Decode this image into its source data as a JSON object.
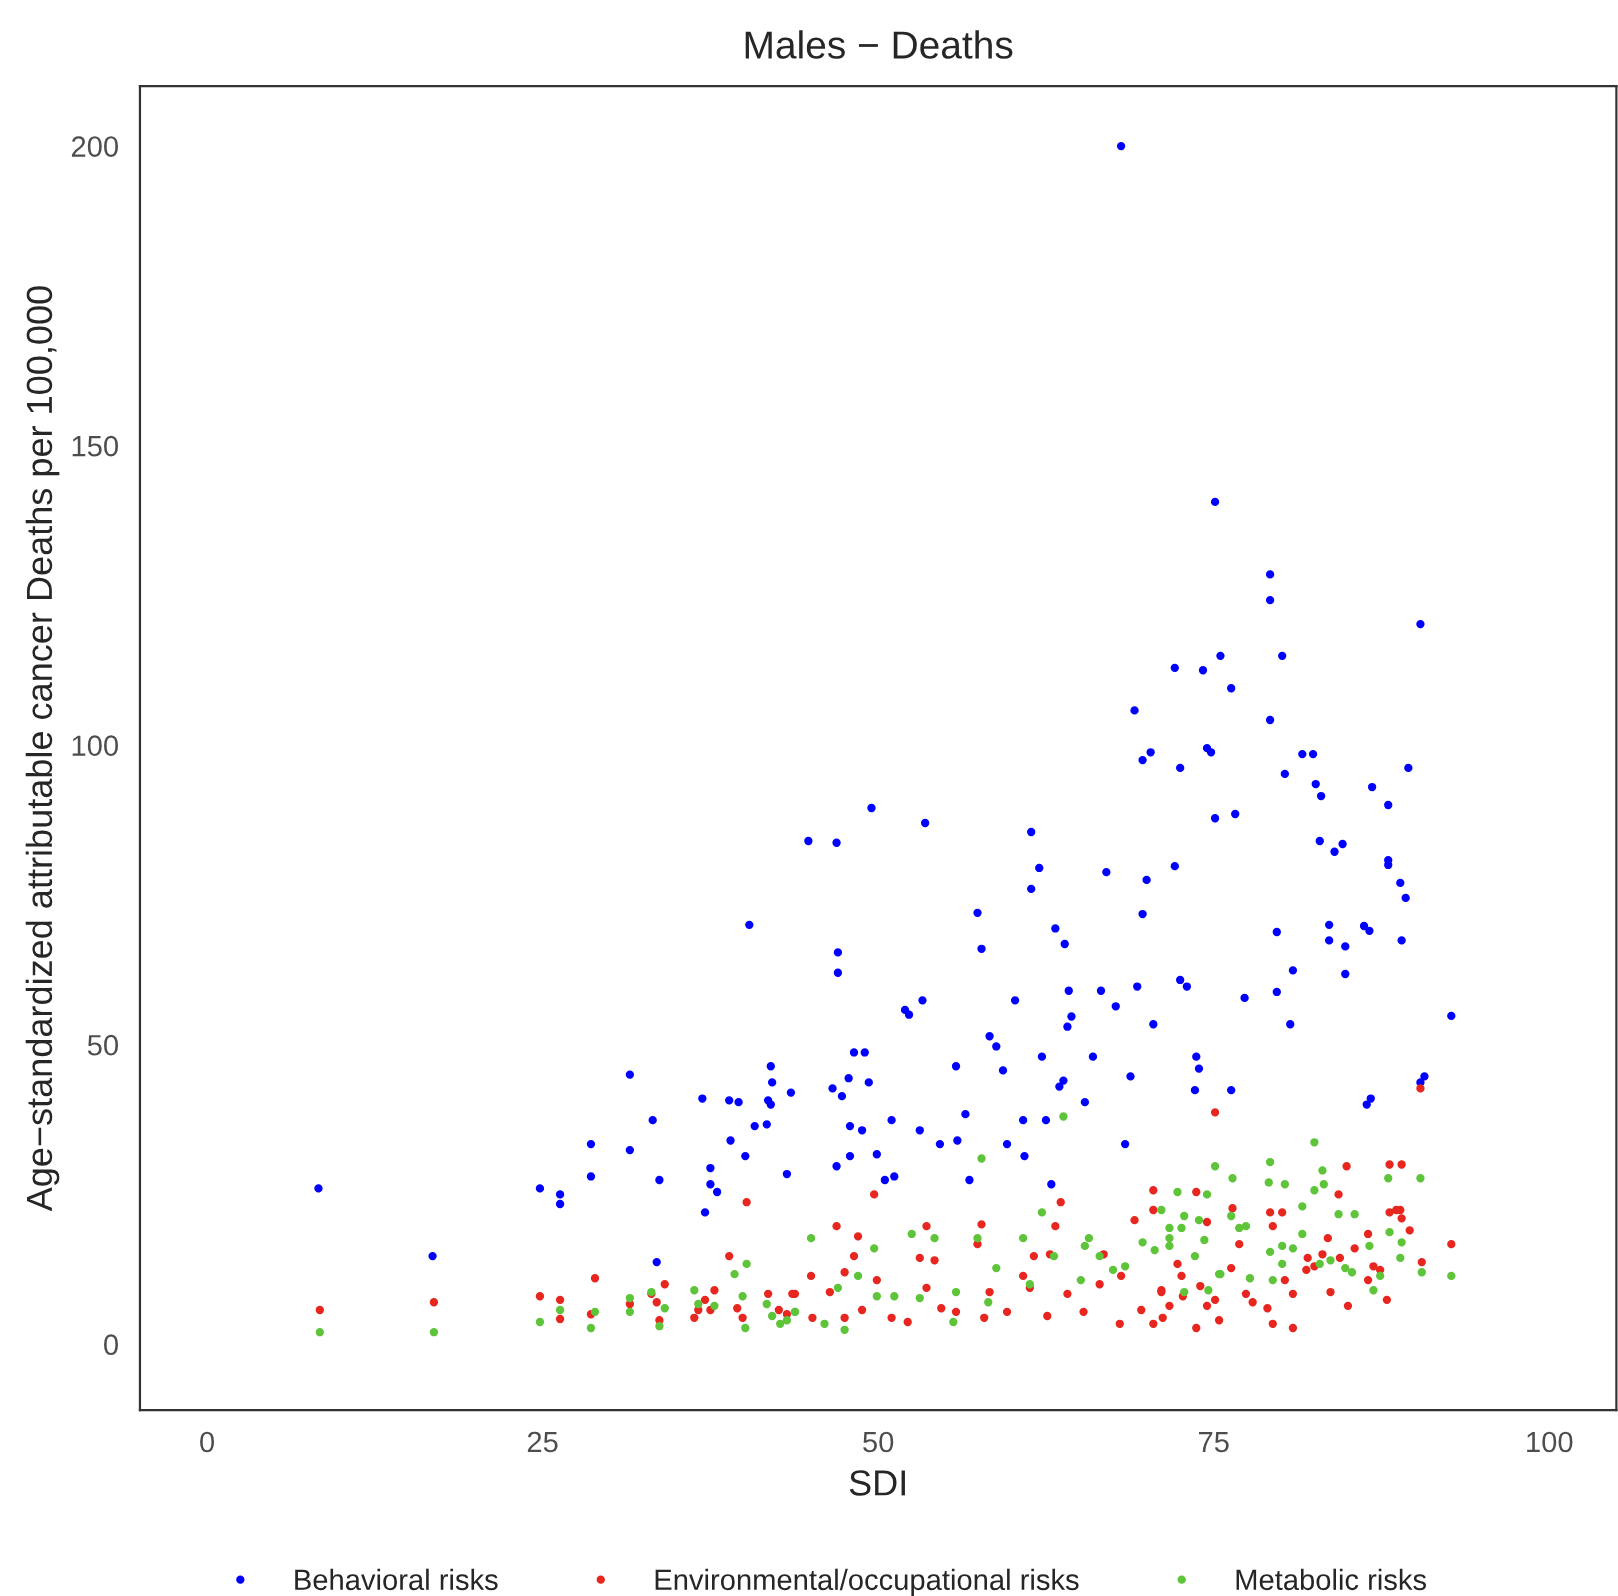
{
  "chart_data": {
    "type": "scatter",
    "title": "Males − Deaths",
    "xlabel": "SDI",
    "ylabel": "Age−standardized attributable cancer Deaths per 100,000",
    "xlim": [
      -5,
      105
    ],
    "ylim": [
      -11,
      210
    ],
    "xticks": [
      0,
      25,
      50,
      75,
      100
    ],
    "yticks": [
      0,
      50,
      100,
      150,
      200
    ],
    "grid": false,
    "legend": "bottom",
    "marker": "circle",
    "series": [
      {
        "name": "Behavioral risks",
        "color": "#0000ff",
        "x": [
          8.3,
          16.8,
          24.8,
          26.3,
          26.3,
          28.6,
          28.6,
          31.5,
          31.5,
          33.2,
          33.7,
          33.5,
          36.9,
          37.1,
          37.5,
          37.5,
          38.0,
          38.9,
          39.0,
          39.6,
          40.4,
          40.1,
          40.8,
          41.7,
          42.0,
          41.8,
          42.0,
          42.1,
          43.2,
          43.5,
          44.8,
          46.9,
          47.0,
          47.0,
          46.6,
          47.3,
          46.9,
          47.8,
          48.2,
          49.0,
          49.3,
          47.9,
          47.9,
          49.5,
          48.8,
          49.9,
          50.5,
          51.0,
          51.2,
          52.0,
          52.3,
          53.3,
          53.5,
          53.1,
          54.6,
          55.8,
          55.9,
          56.5,
          56.8,
          57.4,
          57.7,
          58.3,
          58.8,
          59.3,
          60.2,
          59.6,
          60.8,
          60.9,
          61.4,
          61.4,
          62.0,
          62.5,
          62.2,
          63.2,
          62.9,
          63.5,
          63.8,
          64.1,
          64.2,
          64.4,
          63.9,
          65.4,
          66.0,
          66.6,
          67.0,
          67.7,
          68.4,
          68.8,
          69.7,
          69.1,
          69.7,
          70.3,
          70.0,
          69.3,
          70.5,
          72.1,
          72.5,
          72.1,
          72.5,
          73.0,
          73.7,
          74.2,
          74.5,
          74.8,
          73.9,
          73.6,
          75.1,
          75.5,
          75.1,
          76.3,
          76.6,
          76.3,
          77.3,
          79.2,
          79.2,
          79.2,
          80.1,
          80.3,
          79.7,
          79.7,
          80.7,
          80.9,
          81.6,
          82.4,
          82.6,
          82.9,
          83.0,
          84.0,
          84.6,
          83.6,
          83.6,
          84.8,
          84.8,
          86.2,
          86.4,
          86.7,
          86.6,
          86.8,
          88.0,
          88.0,
          88.0,
          89.5,
          88.9,
          89.3,
          89.0,
          90.4,
          90.4,
          90.7,
          92.7,
          68.1
        ],
        "values": [
          26.0,
          14.7,
          26.0,
          25.0,
          23.4,
          33.4,
          28.0,
          45.0,
          32.4,
          37.4,
          27.4,
          13.7,
          41.0,
          22.0,
          29.4,
          26.7,
          25.4,
          40.7,
          34.0,
          40.4,
          70.0,
          31.4,
          36.4,
          36.7,
          46.4,
          40.7,
          40.0,
          43.7,
          28.4,
          42.0,
          84.0,
          83.7,
          65.4,
          62.0,
          42.7,
          41.4,
          29.7,
          44.4,
          48.7,
          48.7,
          43.7,
          36.4,
          31.4,
          89.5,
          35.7,
          31.7,
          27.4,
          37.4,
          28.0,
          55.8,
          55.0,
          57.4,
          87.0,
          35.7,
          33.4,
          46.4,
          34.0,
          38.4,
          27.4,
          72.0,
          66.0,
          51.4,
          49.7,
          45.7,
          57.4,
          33.4,
          37.4,
          31.4,
          85.5,
          76.0,
          79.5,
          37.4,
          48.0,
          69.4,
          26.7,
          43.0,
          44.0,
          53.0,
          59.0,
          54.7,
          66.8,
          40.4,
          48.0,
          59.0,
          78.8,
          56.4,
          33.4,
          44.7,
          71.8,
          105.8,
          97.5,
          98.8,
          77.5,
          59.7,
          53.4,
          112.9,
          96.2,
          79.8,
          60.8,
          59.7,
          48.0,
          112.5,
          99.5,
          98.8,
          46.0,
          42.4,
          140.6,
          114.9,
          87.8,
          109.5,
          88.5,
          42.4,
          57.8,
          128.5,
          124.2,
          104.2,
          114.9,
          95.2,
          68.8,
          58.8,
          53.4,
          62.4,
          98.5,
          98.5,
          93.5,
          84.0,
          91.5,
          82.2,
          83.5,
          70.0,
          67.4,
          66.4,
          61.8,
          69.8,
          40.0,
          41.0,
          69.0,
          93.0,
          90.0,
          80.8,
          80.0,
          96.2,
          77.0,
          74.5,
          67.4,
          120.2,
          43.7,
          44.7,
          54.8,
          200.0
        ]
      },
      {
        "name": "Environmental/occupational risks",
        "color": "#e6261f",
        "x": [
          8.4,
          16.9,
          24.8,
          26.3,
          26.3,
          28.9,
          28.6,
          31.5,
          33.1,
          33.5,
          34.1,
          33.7,
          36.3,
          36.6,
          37.1,
          37.8,
          37.5,
          38.9,
          40.2,
          39.5,
          39.9,
          41.8,
          42.6,
          43.2,
          43.8,
          43.6,
          45.0,
          45.1,
          46.9,
          46.4,
          47.5,
          47.5,
          48.2,
          48.5,
          48.8,
          49.7,
          49.9,
          51.0,
          52.2,
          53.1,
          53.6,
          54.2,
          53.6,
          54.7,
          55.8,
          57.4,
          57.7,
          57.9,
          58.3,
          59.6,
          60.8,
          61.6,
          61.3,
          62.8,
          63.2,
          62.6,
          63.6,
          64.1,
          65.3,
          66.5,
          66.8,
          68.1,
          68.0,
          69.1,
          69.6,
          70.5,
          70.5,
          71.1,
          70.5,
          75.1,
          90.4,
          84.9,
          88.1,
          89.0,
          84.3,
          73.7,
          74.5,
          76.4,
          79.2,
          80.1,
          79.4,
          88.1,
          88.9,
          89.6,
          92.7,
          90.5,
          72.3,
          72.6,
          71.1,
          71.7,
          72.7,
          74.0,
          74.5,
          75.1,
          75.4,
          73.7,
          71.2,
          76.3,
          76.9,
          77.4,
          77.9,
          79.0,
          79.4,
          80.9,
          80.9,
          80.3,
          81.9,
          82.5,
          83.1,
          83.7,
          83.5,
          84.4,
          85.0,
          85.5,
          86.5,
          86.9,
          87.4,
          87.9,
          86.5,
          82.0,
          89.0,
          88.6
        ],
        "values": [
          5.7,
          7.0,
          8.0,
          7.4,
          4.2,
          11.0,
          5.0,
          6.7,
          8.4,
          7.0,
          10.0,
          4.0,
          4.4,
          5.7,
          7.4,
          9.0,
          5.7,
          14.7,
          23.7,
          6.0,
          4.4,
          8.4,
          5.7,
          5.0,
          8.4,
          8.4,
          11.4,
          4.4,
          19.7,
          8.7,
          12.0,
          4.4,
          14.7,
          18.0,
          5.7,
          25.0,
          10.7,
          4.4,
          3.7,
          14.4,
          19.7,
          14.0,
          9.4,
          6.0,
          5.4,
          16.7,
          20.0,
          4.4,
          8.7,
          5.4,
          11.4,
          14.7,
          9.4,
          15.0,
          19.7,
          4.7,
          23.7,
          8.4,
          5.4,
          10.0,
          15.0,
          11.4,
          3.4,
          20.7,
          5.7,
          25.7,
          22.4,
          8.7,
          3.4,
          38.7,
          42.7,
          29.7,
          30.0,
          30.0,
          25.0,
          25.4,
          20.4,
          22.7,
          22.0,
          22.0,
          19.7,
          22.0,
          22.4,
          19.0,
          16.7,
          13.7,
          13.4,
          11.4,
          9.0,
          6.4,
          8.0,
          9.7,
          6.4,
          7.4,
          4.0,
          2.7,
          4.4,
          12.7,
          16.7,
          8.4,
          7.0,
          6.0,
          3.4,
          8.4,
          2.7,
          10.7,
          12.4,
          13.0,
          15.0,
          8.7,
          17.7,
          14.4,
          6.4,
          16.0,
          18.4,
          13.0,
          12.4,
          7.4,
          10.7,
          14.4,
          21.0,
          22.4
        ]
      },
      {
        "name": "Metabolic risks",
        "color": "#5ec43a",
        "x": [
          8.4,
          16.9,
          24.8,
          26.3,
          28.6,
          28.9,
          31.5,
          31.5,
          33.1,
          34.1,
          33.7,
          36.3,
          36.6,
          37.8,
          39.3,
          40.2,
          39.9,
          40.1,
          41.7,
          42.1,
          42.7,
          43.2,
          43.8,
          45.0,
          43.8,
          46.0,
          47.0,
          47.5,
          48.5,
          49.7,
          49.9,
          51.2,
          52.5,
          54.2,
          53.1,
          55.8,
          55.6,
          57.4,
          57.7,
          58.8,
          58.2,
          60.8,
          61.3,
          62.2,
          63.1,
          63.8,
          65.4,
          65.7,
          66.5,
          65.1,
          67.5,
          68.4,
          69.7,
          70.6,
          71.1,
          71.7,
          82.5,
          75.1,
          79.2,
          83.1,
          76.4,
          79.1,
          80.3,
          83.2,
          88.0,
          90.4,
          72.3,
          74.5,
          81.6,
          82.5,
          85.5,
          84.3,
          72.8,
          71.7,
          72.6,
          73.9,
          76.3,
          76.9,
          77.4,
          88.1,
          89.0,
          88.9,
          90.5,
          92.7,
          73.6,
          74.3,
          75.5,
          77.7,
          79.4,
          80.1,
          80.9,
          81.6,
          82.9,
          83.7,
          84.8,
          85.3,
          86.6,
          87.4,
          86.9,
          71.7,
          72.8,
          74.6,
          75.4,
          79.2,
          80.1
        ],
        "values": [
          2.0,
          2.0,
          3.7,
          5.7,
          2.7,
          5.4,
          7.7,
          5.4,
          8.7,
          6.0,
          3.0,
          9.0,
          6.7,
          6.4,
          11.7,
          13.4,
          8.0,
          2.7,
          6.7,
          4.7,
          3.4,
          4.0,
          5.4,
          17.7,
          5.4,
          3.4,
          9.4,
          2.4,
          11.4,
          16.0,
          8.0,
          8.0,
          18.4,
          17.7,
          7.7,
          8.7,
          3.7,
          17.7,
          31.0,
          12.7,
          7.0,
          17.7,
          10.0,
          22.0,
          14.7,
          38.0,
          16.4,
          17.7,
          14.7,
          10.7,
          12.4,
          13.0,
          17.0,
          15.7,
          22.4,
          17.7,
          33.7,
          29.7,
          30.4,
          29.0,
          27.7,
          27.0,
          26.7,
          26.7,
          27.7,
          27.7,
          25.4,
          25.0,
          23.0,
          25.7,
          21.7,
          21.7,
          21.4,
          19.4,
          19.4,
          20.7,
          21.4,
          19.4,
          19.7,
          18.7,
          17.0,
          14.4,
          12.0,
          11.4,
          14.7,
          17.4,
          11.7,
          11.0,
          10.7,
          16.4,
          16.0,
          18.4,
          13.4,
          14.0,
          12.7,
          12.0,
          16.4,
          11.4,
          9.0,
          16.4,
          8.7,
          9.0,
          11.7,
          15.4,
          13.4
        ]
      }
    ]
  }
}
